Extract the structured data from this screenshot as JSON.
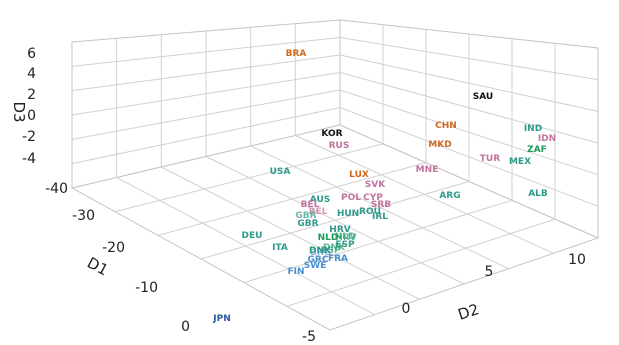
{
  "chart_data": {
    "type": "scatter3d",
    "title": "",
    "axes": {
      "d1": {
        "label": "D1",
        "ticks": [
          "0",
          "-10",
          "-20",
          "-30",
          "-40"
        ]
      },
      "d2": {
        "label": "D2",
        "ticks": [
          "-5",
          "0",
          "5",
          "10"
        ]
      },
      "d3": {
        "label": "D3",
        "ticks": [
          "6",
          "4",
          "2",
          "0",
          "-2",
          "-4"
        ]
      }
    },
    "grid": true,
    "colors": {
      "black": "#111111",
      "orange": "#d2691e",
      "pink": "#c2729c",
      "teal": "#2f9a8a",
      "green": "#1f9a5a",
      "blue": "#4a90d0",
      "darkblue": "#2c5aa0"
    },
    "points": [
      {
        "label": "BRA",
        "color": "orange"
      },
      {
        "label": "SAU",
        "color": "black"
      },
      {
        "label": "CHN",
        "color": "orange"
      },
      {
        "label": "IND",
        "color": "teal"
      },
      {
        "label": "IDN",
        "color": "pink"
      },
      {
        "label": "ZAF",
        "color": "green"
      },
      {
        "label": "MKD",
        "color": "orange"
      },
      {
        "label": "TUR",
        "color": "pink"
      },
      {
        "label": "MEX",
        "color": "teal"
      },
      {
        "label": "KOR",
        "color": "black"
      },
      {
        "label": "RUS",
        "color": "pink"
      },
      {
        "label": "MNE",
        "color": "pink"
      },
      {
        "label": "ALB",
        "color": "teal"
      },
      {
        "label": "ARG",
        "color": "teal"
      },
      {
        "label": "USA",
        "color": "teal"
      },
      {
        "label": "LUX",
        "color": "orange"
      },
      {
        "label": "SVK",
        "color": "pink"
      },
      {
        "label": "POL",
        "color": "pink"
      },
      {
        "label": "CYP",
        "color": "pink"
      },
      {
        "label": "SRB",
        "color": "pink"
      },
      {
        "label": "AUS",
        "color": "teal"
      },
      {
        "label": "ROU",
        "color": "teal"
      },
      {
        "label": "HUN",
        "color": "teal"
      },
      {
        "label": "IRL",
        "color": "teal"
      },
      {
        "label": "BEL",
        "color": "pink"
      },
      {
        "label": "GBR",
        "color": "teal"
      },
      {
        "label": "DEU",
        "color": "teal"
      },
      {
        "label": "HRV",
        "color": "teal"
      },
      {
        "label": "NLD",
        "color": "green"
      },
      {
        "label": "DNK",
        "color": "green"
      },
      {
        "label": "ITA",
        "color": "teal"
      },
      {
        "label": "ESP",
        "color": "teal"
      },
      {
        "label": "GRC",
        "color": "blue"
      },
      {
        "label": "FRA",
        "color": "blue"
      },
      {
        "label": "SWE",
        "color": "blue"
      },
      {
        "label": "FIN",
        "color": "blue"
      },
      {
        "label": "JPN",
        "color": "darkblue"
      }
    ]
  }
}
